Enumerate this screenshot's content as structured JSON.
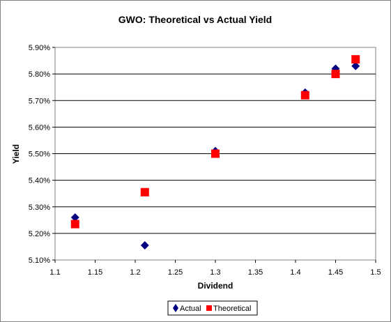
{
  "chart_data": {
    "type": "scatter",
    "title": "GWO: Theoretical vs Actual Yield",
    "xlabel": "Dividend",
    "ylabel": "Yield",
    "xlim": [
      1.1,
      1.5
    ],
    "ylim": [
      5.1,
      5.9
    ],
    "x_ticks": [
      "1.1",
      "1.15",
      "1.2",
      "1.25",
      "1.3",
      "1.35",
      "1.4",
      "1.45",
      "1.5"
    ],
    "y_ticks": [
      "5.10%",
      "5.20%",
      "5.30%",
      "5.40%",
      "5.50%",
      "5.60%",
      "5.70%",
      "5.80%",
      "5.90%"
    ],
    "grid": "horizontal",
    "legend_position": "bottom",
    "series": [
      {
        "name": "Actual",
        "marker": "diamond",
        "color": "#000080",
        "points": [
          {
            "x": 1.125,
            "y": 5.26
          },
          {
            "x": 1.212,
            "y": 5.155
          },
          {
            "x": 1.3,
            "y": 5.51
          },
          {
            "x": 1.412,
            "y": 5.73
          },
          {
            "x": 1.45,
            "y": 5.82
          },
          {
            "x": 1.475,
            "y": 5.83
          }
        ]
      },
      {
        "name": "Theoretical",
        "marker": "square",
        "color": "#ff0000",
        "points": [
          {
            "x": 1.125,
            "y": 5.235
          },
          {
            "x": 1.212,
            "y": 5.355
          },
          {
            "x": 1.3,
            "y": 5.5
          },
          {
            "x": 1.412,
            "y": 5.72
          },
          {
            "x": 1.45,
            "y": 5.8
          },
          {
            "x": 1.475,
            "y": 5.855
          }
        ]
      }
    ]
  }
}
